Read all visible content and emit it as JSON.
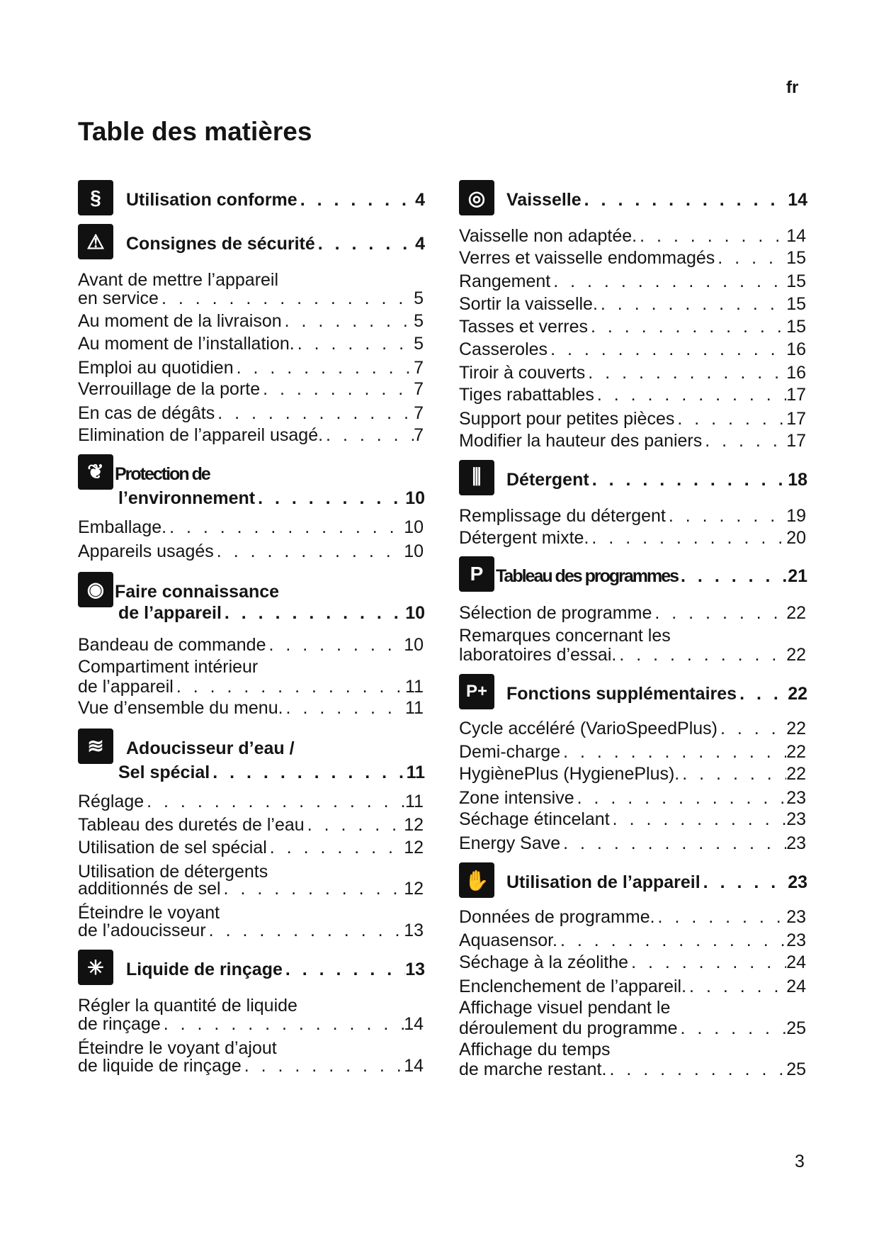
{
  "page": {
    "language": "fr",
    "title": "Table des matières",
    "page_number": "3"
  },
  "columns": [
    {
      "sections": [
        {
          "icon": "law-hand-icon",
          "heading": [
            "Utilisation conforme"
          ],
          "page": "4",
          "items": []
        },
        {
          "icon": "warning-triangle-icon",
          "heading": [
            "Consignes de sécurité"
          ],
          "page": "4",
          "items": [
            {
              "lines": [
                "Avant de mettre l’appareil",
                "en service"
              ],
              "page": "5"
            },
            {
              "lines": [
                "Au moment de la livraison"
              ],
              "page": "5"
            },
            {
              "lines": [
                "Au moment de l’installation."
              ],
              "page": "5"
            },
            {
              "lines": [
                "Emploi au quotidien"
              ],
              "page": "7"
            },
            {
              "lines": [
                "Verrouillage de la porte"
              ],
              "page": "7"
            },
            {
              "lines": [
                "En cas de dégâts"
              ],
              "page": "7"
            },
            {
              "lines": [
                "Elimination de l’appareil usagé."
              ],
              "page": "7"
            }
          ]
        },
        {
          "icon": "leaf-icon",
          "heading": [
            "Protection de",
            "l’environnement"
          ],
          "page": "10",
          "items": [
            {
              "lines": [
                "Emballage."
              ],
              "page": "10"
            },
            {
              "lines": [
                "Appareils usagés"
              ],
              "page": "10"
            }
          ]
        },
        {
          "icon": "eye-icon",
          "heading": [
            "Faire connaissance",
            "de l’appareil"
          ],
          "page": "10",
          "items": [
            {
              "lines": [
                "Bandeau de commande"
              ],
              "page": "10"
            },
            {
              "lines": [
                "Compartiment intérieur",
                "de l’appareil"
              ],
              "page": "11"
            },
            {
              "lines": [
                "Vue d’ensemble du menu."
              ],
              "page": "11"
            }
          ]
        },
        {
          "icon": "water-softener-icon",
          "heading": [
            "Adoucisseur d’eau /",
            "Sel spécial"
          ],
          "page": "11",
          "items": [
            {
              "lines": [
                "Réglage"
              ],
              "page": "11"
            },
            {
              "lines": [
                "Tableau des duretés de l’eau"
              ],
              "page": "12"
            },
            {
              "lines": [
                "Utilisation de sel spécial"
              ],
              "page": "12"
            },
            {
              "lines": [
                "Utilisation de détergents",
                "additionnés de sel"
              ],
              "page": "12"
            },
            {
              "lines": [
                "Éteindre le voyant",
                "de l’adoucisseur"
              ],
              "page": "13"
            }
          ]
        },
        {
          "icon": "rinse-aid-sparkle-icon",
          "heading": [
            "Liquide de rinçage"
          ],
          "page": "13",
          "items": [
            {
              "lines": [
                "Régler la quantité de liquide",
                "de rinçage"
              ],
              "page": "14"
            },
            {
              "lines": [
                "Éteindre le voyant d’ajout",
                "de liquide de rinçage"
              ],
              "page": "14"
            }
          ]
        }
      ]
    },
    {
      "sections": [
        {
          "icon": "dish-plate-icon",
          "heading": [
            "Vaisselle"
          ],
          "page": "14",
          "items": [
            {
              "lines": [
                "Vaisselle non adaptée."
              ],
              "page": "14"
            },
            {
              "lines": [
                "Verres et vaisselle endommagés"
              ],
              "page": "15"
            },
            {
              "lines": [
                "Rangement"
              ],
              "page": "15"
            },
            {
              "lines": [
                "Sortir la vaisselle."
              ],
              "page": "15"
            },
            {
              "lines": [
                "Tasses et verres"
              ],
              "page": "15"
            },
            {
              "lines": [
                "Casseroles"
              ],
              "page": "16"
            },
            {
              "lines": [
                "Tiroir à couverts"
              ],
              "page": "16"
            },
            {
              "lines": [
                "Tiges rabattables"
              ],
              "page": "17"
            },
            {
              "lines": [
                "Support pour petites pièces"
              ],
              "page": "17"
            },
            {
              "lines": [
                "Modifier la hauteur des paniers"
              ],
              "page": "17"
            }
          ]
        },
        {
          "icon": "detergent-icon",
          "heading": [
            "Détergent"
          ],
          "page": "18",
          "items": [
            {
              "lines": [
                "Remplissage du détergent"
              ],
              "page": "19"
            },
            {
              "lines": [
                "Détergent mixte."
              ],
              "page": "20"
            }
          ]
        },
        {
          "icon": "eye-p-program-icon",
          "heading": [
            "Tableau des programmes"
          ],
          "page": "21",
          "items": [
            {
              "lines": [
                "Sélection de programme"
              ],
              "page": "22"
            },
            {
              "lines": [
                "Remarques concernant les",
                "laboratoires d’essai."
              ],
              "page": "22"
            }
          ]
        },
        {
          "icon": "p-plus-icon",
          "heading": [
            "Fonctions supplémentaires"
          ],
          "page": "22",
          "items": [
            {
              "lines": [
                "Cycle accéléré (VarioSpeedPlus)"
              ],
              "page": "22"
            },
            {
              "lines": [
                "Demi-charge"
              ],
              "page": "22"
            },
            {
              "lines": [
                "HygiènePlus (HygienePlus)."
              ],
              "page": "22"
            },
            {
              "lines": [
                "Zone intensive"
              ],
              "page": "23"
            },
            {
              "lines": [
                "Séchage étincelant"
              ],
              "page": "23"
            },
            {
              "lines": [
                "Energy Save"
              ],
              "page": "23"
            }
          ]
        },
        {
          "icon": "appliance-use-icon",
          "heading": [
            "Utilisation de l’appareil"
          ],
          "page": "23",
          "items": [
            {
              "lines": [
                "Données de programme."
              ],
              "page": "23"
            },
            {
              "lines": [
                "Aquasensor."
              ],
              "page": "23"
            },
            {
              "lines": [
                "Séchage à la zéolithe"
              ],
              "page": "24"
            },
            {
              "lines": [
                "Enclenchement de l’appareil."
              ],
              "page": "24"
            },
            {
              "lines": [
                "Affichage visuel pendant le",
                "déroulement du programme"
              ],
              "page": "25"
            },
            {
              "lines": [
                "Affichage du temps",
                "de marche restant."
              ],
              "page": "25"
            }
          ]
        }
      ]
    }
  ]
}
